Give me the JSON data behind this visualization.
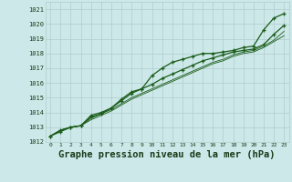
{
  "bg_color": "#cde8e8",
  "grid_color": "#b0cccc",
  "line_color": "#1a5c1a",
  "xlabel": "Graphe pression niveau de la mer (hPa)",
  "xlabel_fontsize": 7.5,
  "ylim": [
    1012,
    1021.5
  ],
  "xlim": [
    -0.5,
    23.5
  ],
  "yticks": [
    1012,
    1013,
    1014,
    1015,
    1016,
    1017,
    1018,
    1019,
    1020,
    1021
  ],
  "xticks": [
    0,
    1,
    2,
    3,
    4,
    5,
    6,
    7,
    8,
    9,
    10,
    11,
    12,
    13,
    14,
    15,
    16,
    17,
    18,
    19,
    20,
    21,
    22,
    23
  ],
  "series1_x": [
    0,
    1,
    2,
    3,
    4,
    5,
    6,
    7,
    8,
    9,
    10,
    11,
    12,
    13,
    14,
    15,
    16,
    17,
    18,
    19,
    20,
    21,
    22,
    23
  ],
  "series1_y": [
    1012.4,
    1012.7,
    1013.0,
    1013.1,
    1013.7,
    1013.9,
    1014.3,
    1014.8,
    1015.3,
    1015.6,
    1016.5,
    1017.0,
    1017.4,
    1017.6,
    1017.8,
    1018.0,
    1018.0,
    1018.1,
    1018.2,
    1018.4,
    1018.5,
    1019.6,
    1020.4,
    1020.7
  ],
  "series2_x": [
    0,
    1,
    2,
    3,
    4,
    5,
    6,
    7,
    8,
    9,
    10,
    11,
    12,
    13,
    14,
    15,
    16,
    17,
    18,
    19,
    20,
    21,
    22,
    23
  ],
  "series2_y": [
    1012.4,
    1012.8,
    1013.0,
    1013.1,
    1013.8,
    1014.0,
    1014.3,
    1014.9,
    1015.4,
    1015.6,
    1015.9,
    1016.3,
    1016.6,
    1016.9,
    1017.2,
    1017.5,
    1017.7,
    1017.9,
    1018.1,
    1018.2,
    1018.3,
    1018.6,
    1019.3,
    1019.9
  ],
  "series3_x": [
    0,
    1,
    2,
    3,
    4,
    5,
    6,
    7,
    8,
    9,
    10,
    11,
    12,
    13,
    14,
    15,
    16,
    17,
    18,
    19,
    20,
    21,
    22,
    23
  ],
  "series3_y": [
    1012.4,
    1012.8,
    1013.0,
    1013.1,
    1013.5,
    1013.8,
    1014.1,
    1014.5,
    1014.9,
    1015.2,
    1015.5,
    1015.8,
    1016.1,
    1016.4,
    1016.7,
    1017.0,
    1017.3,
    1017.5,
    1017.8,
    1018.0,
    1018.1,
    1018.4,
    1018.8,
    1019.2
  ],
  "series4_x": [
    0,
    1,
    2,
    3,
    4,
    5,
    6,
    7,
    8,
    9,
    10,
    11,
    12,
    13,
    14,
    15,
    16,
    17,
    18,
    19,
    20,
    21,
    22,
    23
  ],
  "series4_y": [
    1012.4,
    1012.8,
    1013.0,
    1013.1,
    1013.6,
    1013.9,
    1014.2,
    1014.6,
    1015.0,
    1015.3,
    1015.6,
    1015.9,
    1016.2,
    1016.5,
    1016.8,
    1017.1,
    1017.4,
    1017.6,
    1017.9,
    1018.1,
    1018.2,
    1018.5,
    1018.9,
    1019.5
  ]
}
